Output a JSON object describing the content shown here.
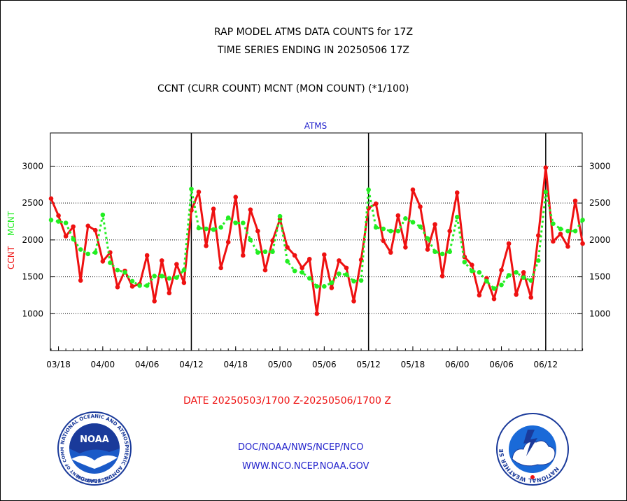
{
  "header": {
    "title_line1": "RAP MODEL ATMS DATA COUNTS for 17Z",
    "title_line2": "TIME SERIES ENDING IN 20250506 17Z",
    "title_line3": "CCNT (CURR COUNT) MCNT (MON COUNT) (*1/100)"
  },
  "footer": {
    "date_range": "DATE 20250503/1700 Z-20250506/1700 Z",
    "link1": "DOC/NOAA/NWS/NCEP/NCO",
    "link2": "WWW.NCO.NCEP.NOAA.GOV"
  },
  "logos": {
    "noaa_text": "NOAA",
    "noaa_ring": "NATIONAL OCEANIC AND ATMOSPHERIC ADMINISTRATION",
    "noaa_ring_bottom": "U.S. DEPARTMENT OF COMMERCE",
    "nws_ring": "NATIONAL WEATHER SERVICE"
  },
  "colors": {
    "ccnt": "#ee1111",
    "mcnt": "#22ee22",
    "title": "#000000",
    "axis_title": "#2222cc",
    "footer_date": "#ee1111",
    "footer_links": "#2222cc"
  },
  "chart_data": {
    "type": "line",
    "title": "ATMS",
    "ylabel_left": [
      "CCNT",
      "MCNT"
    ],
    "x_tick_labels": [
      "03/18",
      "04/00",
      "04/06",
      "04/12",
      "04/18",
      "05/00",
      "05/06",
      "05/12",
      "05/18",
      "06/00",
      "06/06",
      "06/12"
    ],
    "y_ticks": [
      1000,
      1500,
      2000,
      2500,
      3000
    ],
    "ylim": [
      500,
      3450
    ],
    "grid": true,
    "series": [
      {
        "name": "CCNT",
        "values": [
          2560,
          2330,
          2050,
          2180,
          1450,
          2190,
          2130,
          1710,
          1830,
          1360,
          1580,
          1370,
          1400,
          1790,
          1170,
          1720,
          1280,
          1670,
          1420,
          2400,
          2650,
          1920,
          2420,
          1620,
          1970,
          2580,
          1790,
          2410,
          2120,
          1590,
          1990,
          2280,
          1900,
          1790,
          1620,
          1740,
          1000,
          1800,
          1350,
          1720,
          1620,
          1170,
          1730,
          2430,
          2490,
          1990,
          1830,
          2330,
          1900,
          2680,
          2450,
          1870,
          2210,
          1510,
          2120,
          2640,
          1770,
          1660,
          1250,
          1480,
          1200,
          1590,
          1950,
          1260,
          1560,
          1220,
          2060,
          2980,
          1980,
          2080,
          1910,
          2530,
          1950
        ]
      },
      {
        "name": "MCNT",
        "values": [
          2270,
          2250,
          2230,
          2010,
          1870,
          1810,
          1830,
          2340,
          1690,
          1590,
          1560,
          1440,
          1380,
          1380,
          1510,
          1510,
          1480,
          1490,
          1590,
          2690,
          2160,
          2150,
          2140,
          2170,
          2300,
          2230,
          2230,
          2000,
          1830,
          1840,
          1840,
          2320,
          1710,
          1580,
          1560,
          1480,
          1370,
          1370,
          1420,
          1540,
          1530,
          1440,
          1450,
          2680,
          2170,
          2150,
          2120,
          2120,
          2290,
          2240,
          2180,
          2020,
          1840,
          1810,
          1840,
          2310,
          1700,
          1580,
          1560,
          1440,
          1340,
          1390,
          1520,
          1560,
          1490,
          1450,
          1720,
          2650,
          2220,
          2150,
          2120,
          2120,
          2270
        ]
      }
    ]
  }
}
